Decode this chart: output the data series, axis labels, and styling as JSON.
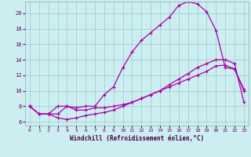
{
  "xlabel": "Windchill (Refroidissement éolien,°C)",
  "bg_color": "#cceef0",
  "grid_color": "#99cccc",
  "line_color": "#aa00aa",
  "xlim": [
    -0.5,
    23.5
  ],
  "ylim": [
    5.5,
    21.5
  ],
  "yticks": [
    6,
    8,
    10,
    12,
    14,
    16,
    18,
    20
  ],
  "xticks": [
    0,
    1,
    2,
    3,
    4,
    5,
    6,
    7,
    8,
    9,
    10,
    11,
    12,
    13,
    14,
    15,
    16,
    17,
    18,
    19,
    20,
    21,
    22,
    23
  ],
  "line1_x": [
    0,
    1,
    2,
    3,
    4,
    5,
    6,
    7,
    8,
    9,
    10,
    11,
    12,
    13,
    14,
    15,
    16,
    17,
    18,
    19,
    20,
    21,
    22,
    23
  ],
  "line1_y": [
    8.0,
    7.0,
    7.0,
    7.0,
    8.0,
    7.5,
    7.5,
    7.8,
    7.8,
    8.0,
    8.2,
    8.5,
    9.0,
    9.5,
    10.0,
    10.5,
    11.0,
    11.5,
    12.0,
    12.5,
    13.2,
    13.3,
    12.8,
    10.2
  ],
  "line2_x": [
    0,
    1,
    2,
    3,
    4,
    5,
    6,
    7,
    8,
    9,
    10,
    11,
    12,
    13,
    14,
    15,
    16,
    17,
    18,
    19,
    20,
    21,
    22,
    23
  ],
  "line2_y": [
    8.0,
    7.0,
    7.0,
    6.5,
    6.3,
    6.5,
    6.8,
    7.0,
    7.2,
    7.5,
    8.0,
    8.5,
    9.0,
    9.5,
    10.0,
    10.8,
    11.5,
    12.2,
    13.0,
    13.5,
    14.0,
    14.0,
    13.5,
    8.5
  ],
  "line3_x": [
    0,
    1,
    2,
    3,
    4,
    5,
    6,
    7,
    8,
    9,
    10,
    11,
    12,
    13,
    14,
    15,
    16,
    17,
    18,
    19,
    20,
    21,
    22,
    23
  ],
  "line3_y": [
    8.0,
    7.0,
    7.0,
    8.0,
    8.0,
    7.8,
    8.0,
    8.0,
    9.5,
    10.5,
    13.0,
    15.0,
    16.5,
    17.5,
    18.5,
    19.5,
    21.0,
    21.5,
    21.2,
    20.2,
    17.8,
    13.0,
    12.8,
    10.0
  ]
}
